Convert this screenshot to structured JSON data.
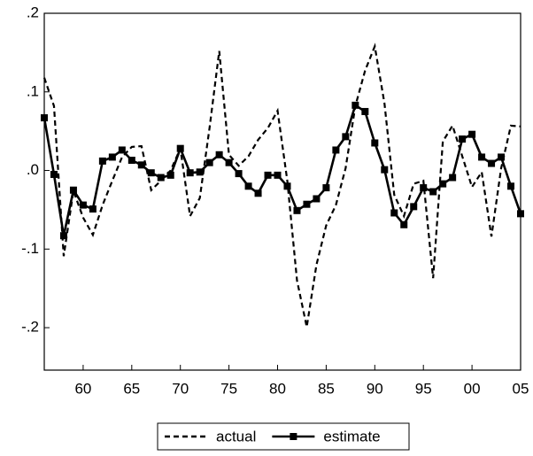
{
  "chart_data": {
    "type": "line",
    "x": [
      1956,
      1957,
      1958,
      1959,
      1960,
      1961,
      1962,
      1963,
      1964,
      1965,
      1966,
      1967,
      1968,
      1969,
      1970,
      1971,
      1972,
      1973,
      1974,
      1975,
      1976,
      1977,
      1978,
      1979,
      1980,
      1981,
      1982,
      1983,
      1984,
      1985,
      1986,
      1987,
      1988,
      1989,
      1990,
      1991,
      1992,
      1993,
      1994,
      1995,
      1996,
      1997,
      1998,
      1999,
      2000,
      2001,
      2002,
      2003,
      2004,
      2005
    ],
    "series": [
      {
        "name": "actual",
        "color": "#000000",
        "line_style": "dashed",
        "marker": "none",
        "values": [
          0.118,
          0.082,
          -0.109,
          -0.026,
          -0.06,
          -0.082,
          -0.044,
          -0.013,
          0.017,
          0.03,
          0.031,
          -0.025,
          -0.013,
          0.0,
          0.028,
          -0.058,
          -0.035,
          0.054,
          0.152,
          0.02,
          0.006,
          0.018,
          0.039,
          0.054,
          0.076,
          -0.013,
          -0.14,
          -0.199,
          -0.12,
          -0.07,
          -0.044,
          0.003,
          0.082,
          0.127,
          0.158,
          0.085,
          -0.031,
          -0.058,
          -0.017,
          -0.013,
          -0.137,
          0.037,
          0.057,
          0.018,
          -0.021,
          -0.002,
          -0.084,
          0.003,
          0.057,
          0.056
        ]
      },
      {
        "name": "estimate",
        "color": "#000000",
        "line_style": "solid",
        "marker": "square",
        "values": [
          0.067,
          -0.005,
          -0.083,
          -0.025,
          -0.044,
          -0.049,
          0.012,
          0.017,
          0.026,
          0.013,
          0.007,
          -0.003,
          -0.009,
          -0.006,
          0.028,
          -0.003,
          -0.002,
          0.01,
          0.02,
          0.01,
          -0.004,
          -0.02,
          -0.029,
          -0.006,
          -0.006,
          -0.02,
          -0.051,
          -0.043,
          -0.036,
          -0.022,
          0.026,
          0.043,
          0.083,
          0.075,
          0.035,
          0.001,
          -0.054,
          -0.069,
          -0.046,
          -0.022,
          -0.027,
          -0.017,
          -0.009,
          0.04,
          0.046,
          0.017,
          0.009,
          0.017,
          -0.02,
          -0.055
        ]
      }
    ],
    "xlim": [
      1956,
      2005
    ],
    "xticks": [
      {
        "value": 1960,
        "label": "60"
      },
      {
        "value": 1965,
        "label": "65"
      },
      {
        "value": 1970,
        "label": "70"
      },
      {
        "value": 1975,
        "label": "75"
      },
      {
        "value": 1980,
        "label": "80"
      },
      {
        "value": 1985,
        "label": "85"
      },
      {
        "value": 1990,
        "label": "90"
      },
      {
        "value": 1995,
        "label": "95"
      },
      {
        "value": 2000,
        "label": "00"
      },
      {
        "value": 2005,
        "label": "05"
      }
    ],
    "ylim": [
      -0.254,
      0.2
    ],
    "yticks": [
      {
        "value": 0.2,
        "label": ".2"
      },
      {
        "value": 0.1,
        "label": ".1"
      },
      {
        "value": 0.0,
        "label": ".0"
      },
      {
        "value": -0.1,
        "label": "-.1"
      },
      {
        "value": -0.2,
        "label": "-.2"
      }
    ],
    "grid": false,
    "legend": "bottom"
  }
}
